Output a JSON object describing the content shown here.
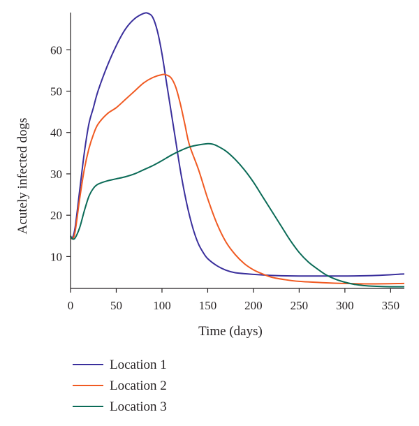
{
  "chart_data": {
    "type": "line",
    "xlabel": "Time (days)",
    "ylabel": "Acutely infected dogs",
    "xlim": [
      0,
      365
    ],
    "ylim": [
      2.3,
      69
    ],
    "xticks": [
      0,
      50,
      100,
      150,
      200,
      250,
      300,
      350
    ],
    "yticks": [
      10,
      20,
      30,
      40,
      50,
      60
    ],
    "grid": false,
    "legend_position": "bottom-left",
    "series": [
      {
        "name": "Location 1",
        "color": "#3a2f9c",
        "points": [
          [
            0,
            15
          ],
          [
            2,
            14.5
          ],
          [
            5,
            17
          ],
          [
            10,
            26
          ],
          [
            15,
            35
          ],
          [
            20,
            42
          ],
          [
            25,
            46
          ],
          [
            30,
            50
          ],
          [
            40,
            56
          ],
          [
            50,
            61
          ],
          [
            60,
            65
          ],
          [
            70,
            67.5
          ],
          [
            80,
            68.8
          ],
          [
            85,
            68.8
          ],
          [
            90,
            67.8
          ],
          [
            95,
            64.5
          ],
          [
            100,
            59
          ],
          [
            105,
            52
          ],
          [
            110,
            45
          ],
          [
            115,
            38
          ],
          [
            120,
            31
          ],
          [
            125,
            25
          ],
          [
            130,
            20
          ],
          [
            135,
            16
          ],
          [
            140,
            13
          ],
          [
            145,
            11
          ],
          [
            150,
            9.5
          ],
          [
            160,
            7.8
          ],
          [
            170,
            6.7
          ],
          [
            180,
            6.1
          ],
          [
            200,
            5.7
          ],
          [
            225,
            5.4
          ],
          [
            250,
            5.3
          ],
          [
            300,
            5.3
          ],
          [
            330,
            5.4
          ],
          [
            365,
            5.8
          ]
        ]
      },
      {
        "name": "Location 2",
        "color": "#f05a22",
        "points": [
          [
            0,
            15
          ],
          [
            2,
            14.3
          ],
          [
            5,
            16
          ],
          [
            10,
            24
          ],
          [
            15,
            31
          ],
          [
            20,
            36
          ],
          [
            25,
            39.5
          ],
          [
            30,
            42
          ],
          [
            40,
            44.5
          ],
          [
            50,
            46
          ],
          [
            60,
            48
          ],
          [
            70,
            50
          ],
          [
            80,
            52
          ],
          [
            90,
            53.3
          ],
          [
            100,
            54
          ],
          [
            105,
            53.9
          ],
          [
            110,
            53.2
          ],
          [
            115,
            51
          ],
          [
            120,
            47
          ],
          [
            125,
            42
          ],
          [
            130,
            37
          ],
          [
            140,
            31
          ],
          [
            150,
            24
          ],
          [
            160,
            18
          ],
          [
            170,
            13.5
          ],
          [
            180,
            10.5
          ],
          [
            190,
            8.3
          ],
          [
            200,
            6.8
          ],
          [
            210,
            5.8
          ],
          [
            220,
            5
          ],
          [
            235,
            4.4
          ],
          [
            250,
            4
          ],
          [
            275,
            3.7
          ],
          [
            300,
            3.5
          ],
          [
            330,
            3.4
          ],
          [
            365,
            3.5
          ]
        ]
      },
      {
        "name": "Location 3",
        "color": "#0b6b57",
        "points": [
          [
            0,
            15
          ],
          [
            2,
            14.3
          ],
          [
            5,
            14.5
          ],
          [
            10,
            17
          ],
          [
            15,
            21
          ],
          [
            20,
            24.5
          ],
          [
            25,
            26.5
          ],
          [
            30,
            27.5
          ],
          [
            40,
            28.3
          ],
          [
            50,
            28.8
          ],
          [
            60,
            29.3
          ],
          [
            70,
            30
          ],
          [
            80,
            31
          ],
          [
            90,
            32
          ],
          [
            100,
            33.2
          ],
          [
            110,
            34.5
          ],
          [
            120,
            35.6
          ],
          [
            130,
            36.5
          ],
          [
            140,
            37
          ],
          [
            150,
            37.3
          ],
          [
            155,
            37.2
          ],
          [
            160,
            36.8
          ],
          [
            170,
            35.5
          ],
          [
            180,
            33.5
          ],
          [
            190,
            31
          ],
          [
            200,
            28
          ],
          [
            210,
            24.5
          ],
          [
            220,
            21
          ],
          [
            230,
            17.5
          ],
          [
            240,
            14
          ],
          [
            250,
            11
          ],
          [
            260,
            8.7
          ],
          [
            270,
            7
          ],
          [
            280,
            5.5
          ],
          [
            290,
            4.5
          ],
          [
            300,
            3.8
          ],
          [
            310,
            3.3
          ],
          [
            320,
            3
          ],
          [
            335,
            2.8
          ],
          [
            350,
            2.7
          ],
          [
            365,
            2.7
          ]
        ]
      }
    ]
  }
}
